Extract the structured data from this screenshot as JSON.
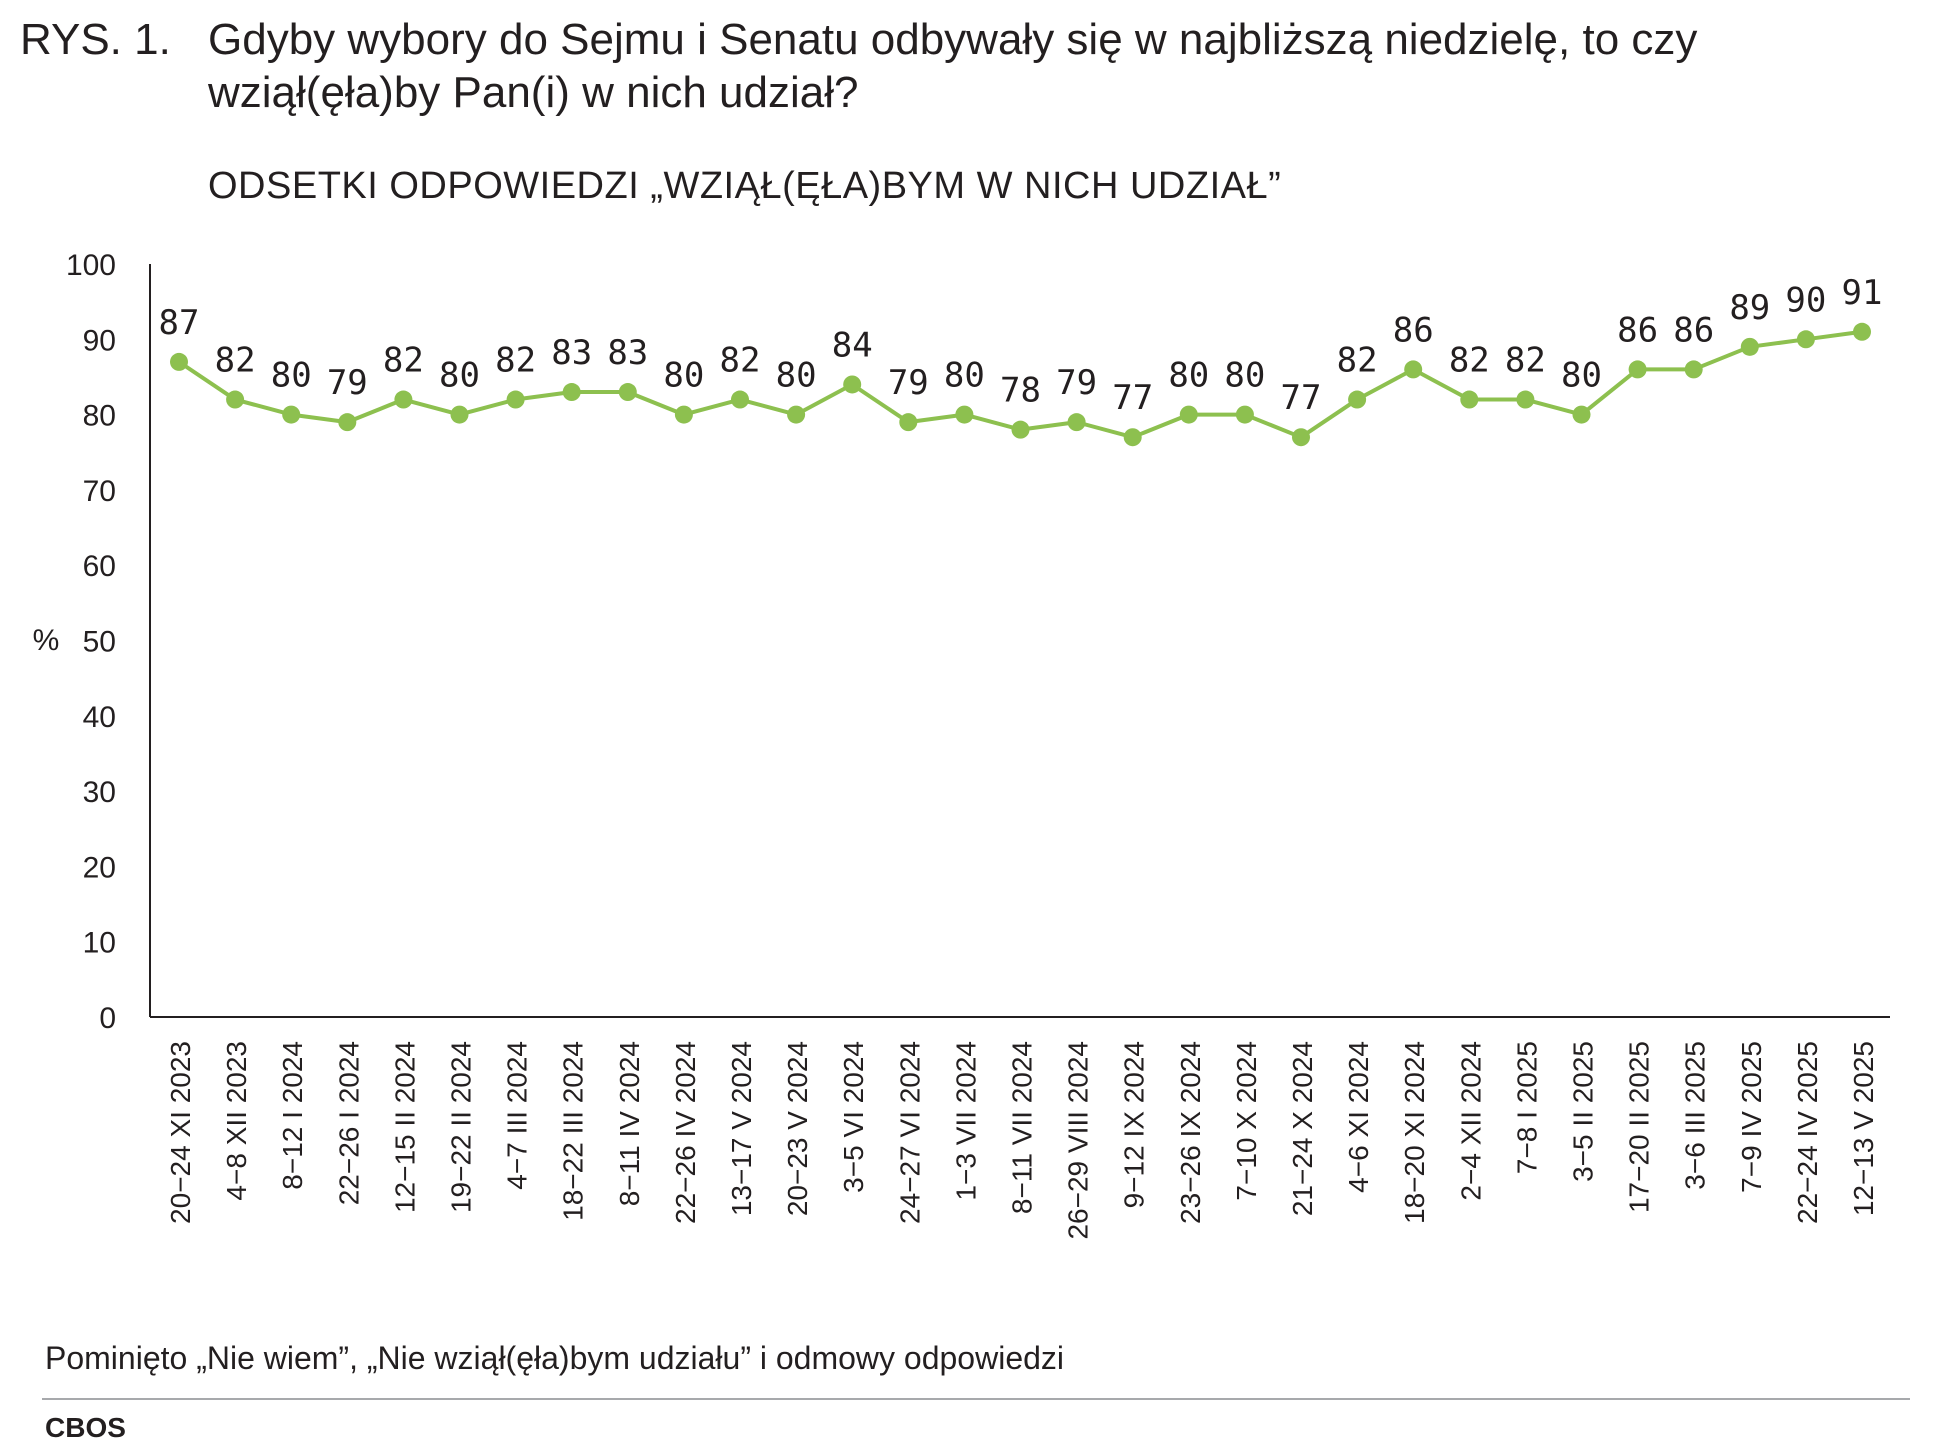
{
  "header": {
    "title_prefix": "RYS. 1.",
    "title": "Gdyby wybory do Sejmu i Senatu odbywały się w najbliższą niedzielę, to czy wziął(ęła)by Pan(i) w nich udział?",
    "subtitle": "ODSETKI ODPOWIEDZI „WZIĄŁ(ĘŁA)BYM W NICH UDZIAŁ”"
  },
  "footer": {
    "note": "Pominięto „Nie wiem”, „Nie wziął(ęła)bym udziału” i odmowy odpowiedzi",
    "source": "CBOS"
  },
  "chart_data": {
    "type": "line",
    "ylabel": "%",
    "ylim": [
      0,
      100
    ],
    "yticks": [
      0,
      10,
      20,
      30,
      40,
      50,
      60,
      70,
      80,
      90,
      100
    ],
    "grid": false,
    "legend": "none",
    "color": "#8dc04f",
    "categories": [
      "20−24 XI 2023",
      "4−8 XII 2023",
      "8−12 I 2024",
      "22−26 I 2024",
      "12−15 II 2024",
      "19−22 II 2024",
      "4−7 III 2024",
      "18−22 III 2024",
      "8−11 IV 2024",
      "22−26 IV 2024",
      "13−17 V 2024",
      "20−23 V 2024",
      "3−5 VI 2024",
      "24−27 VI 2024",
      "1−3 VII 2024",
      "8−11 VII 2024",
      "26−29 VIII 2024",
      "9−12 IX 2024",
      "23−26 IX 2024",
      "7−10 X 2024",
      "21−24 X 2024",
      "4−6 XI 2024",
      "18−20 XI 2024",
      "2−4 XII 2024",
      "7−8 I 2025",
      "3−5 II 2025",
      "17−20 II 2025",
      "3−6 III 2025",
      "7−9 IV 2025",
      "22−24 IV 2025",
      "12−13 V 2025"
    ],
    "values": [
      87,
      82,
      80,
      79,
      82,
      80,
      82,
      83,
      83,
      80,
      82,
      80,
      84,
      79,
      80,
      78,
      79,
      77,
      80,
      80,
      77,
      82,
      86,
      82,
      82,
      80,
      86,
      86,
      89,
      90,
      91
    ]
  }
}
